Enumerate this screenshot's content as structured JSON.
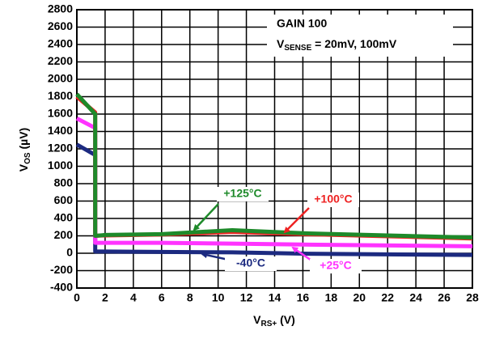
{
  "chart_data": {
    "type": "line",
    "annotation": {
      "line1": "GAIN 100",
      "line2": {
        "main": "V",
        "sub": "SENSE",
        "rest": " = 20mV, 100mV"
      }
    },
    "xlabel": {
      "main": "V",
      "sub": "RS+",
      "rest": " (V)"
    },
    "ylabel": {
      "main": "V",
      "sub": "OS",
      "rest": " (µV)"
    },
    "x": [
      0,
      1.3,
      1.3,
      2,
      6,
      11,
      16,
      28
    ],
    "series": [
      {
        "name": "-40°C",
        "color": "#1c2a80",
        "values": [
          1250,
          1130,
          20,
          20,
          15,
          10,
          -5,
          -20
        ]
      },
      {
        "name": "+25°C",
        "color": "#ff33ff",
        "values": [
          1550,
          1440,
          120,
          120,
          120,
          110,
          100,
          80
        ]
      },
      {
        "name": "+100°C",
        "color": "#ee2222",
        "values": [
          1800,
          1620,
          200,
          205,
          215,
          245,
          220,
          170
        ]
      },
      {
        "name": "+125°C",
        "color": "#1e8a2a",
        "values": [
          1830,
          1600,
          200,
          210,
          220,
          265,
          230,
          180
        ]
      }
    ],
    "xlim": [
      0,
      28
    ],
    "xticks": [
      0,
      2,
      4,
      6,
      8,
      10,
      12,
      14,
      16,
      18,
      20,
      22,
      24,
      26,
      28
    ],
    "ylim": [
      -400,
      2800
    ],
    "yticks": [
      -400,
      -200,
      0,
      200,
      400,
      600,
      800,
      1000,
      1200,
      1400,
      1600,
      1800,
      2000,
      2200,
      2400,
      2600,
      2800
    ],
    "grid": true
  }
}
